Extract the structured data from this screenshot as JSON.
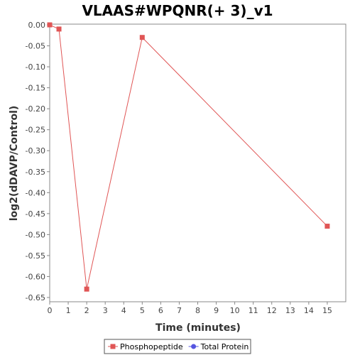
{
  "chart_data": {
    "type": "line",
    "title": "VLAAS#WPQNR(+ 3)_v1",
    "xlabel": "Time (minutes)",
    "ylabel": "log2(dDAVP/Control)",
    "xlim": [
      0,
      16
    ],
    "ylim": [
      -0.665,
      0.0
    ],
    "x_ticks": [
      0,
      1,
      2,
      3,
      4,
      5,
      6,
      7,
      8,
      9,
      10,
      11,
      12,
      13,
      14,
      15
    ],
    "y_ticks": [
      0.0,
      -0.05,
      -0.1,
      -0.15,
      -0.2,
      -0.25,
      -0.3,
      -0.35,
      -0.4,
      -0.45,
      -0.5,
      -0.55,
      -0.6,
      -0.65
    ],
    "y_tick_labels": [
      "0.00",
      "-0.05",
      "-0.10",
      "-0.15",
      "-0.20",
      "-0.25",
      "-0.30",
      "-0.35",
      "-0.40",
      "-0.45",
      "-0.50",
      "-0.55",
      "-0.60",
      "-0.65"
    ],
    "grid": false,
    "legend_position": "bottom",
    "series": [
      {
        "name": "Phosphopeptide",
        "color": "#e05555",
        "marker": "square",
        "x": [
          0,
          0.5,
          2,
          5,
          15
        ],
        "y": [
          0.0,
          -0.01,
          -0.63,
          -0.03,
          -0.48
        ]
      },
      {
        "name": "Total Protein",
        "color": "#5555e0",
        "marker": "circle",
        "x": [],
        "y": []
      }
    ]
  }
}
